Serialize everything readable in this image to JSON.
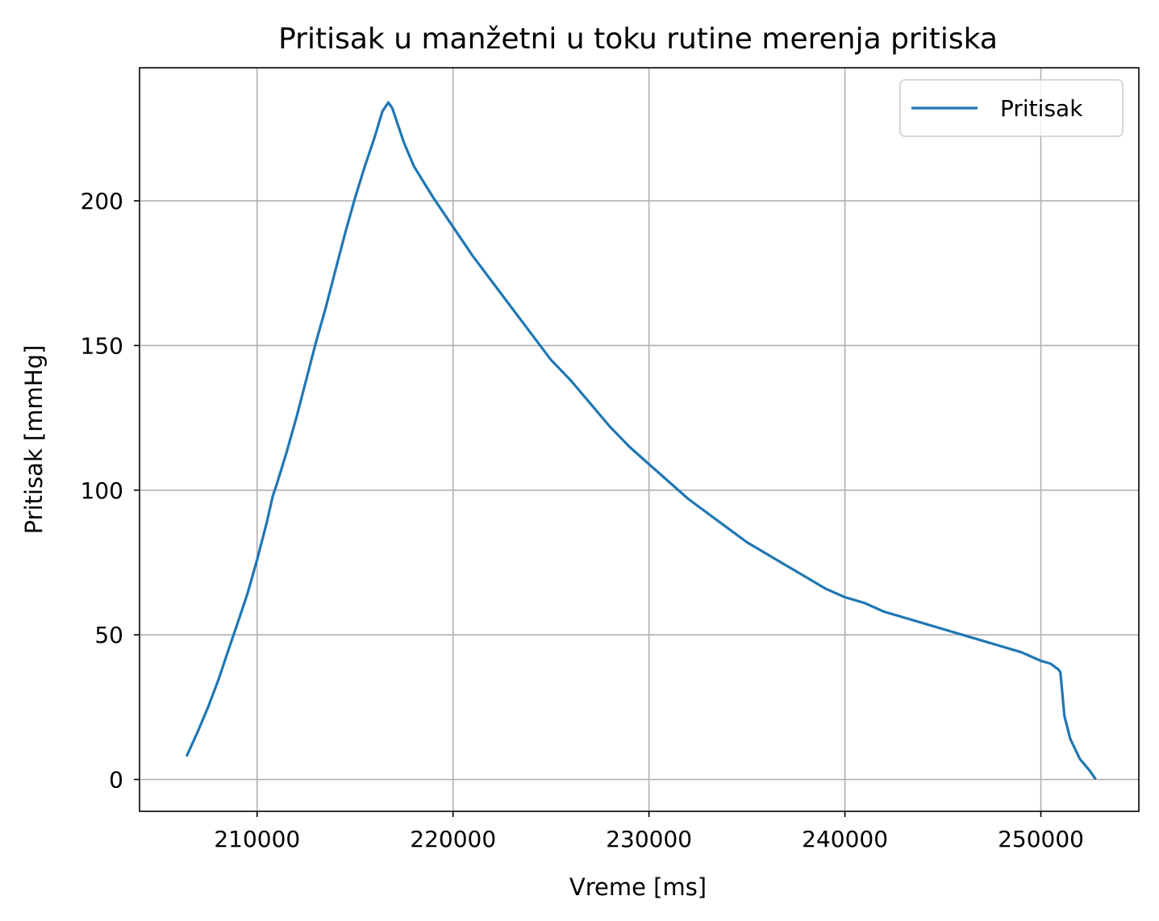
{
  "chart_data": {
    "type": "line",
    "title": "Pritisak u manžetni u toku rutine merenja pritiska",
    "xlabel": "Vreme [ms]",
    "ylabel": "Pritisak [mmHg]",
    "xlim": [
      204000,
      255000
    ],
    "ylim": [
      -11,
      246
    ],
    "xticks": [
      210000,
      220000,
      230000,
      240000,
      250000
    ],
    "yticks": [
      0,
      50,
      100,
      150,
      200
    ],
    "grid": true,
    "legend_position": "top-right",
    "colors": {
      "series": "#1f77b4",
      "grid": "#b0b0b0"
    },
    "series": [
      {
        "name": "Pritisak",
        "x": [
          206400,
          206600,
          207000,
          207500,
          208000,
          208500,
          209000,
          209500,
          210000,
          210500,
          210800,
          211000,
          211500,
          212000,
          212500,
          213000,
          213500,
          214000,
          214500,
          215000,
          215500,
          216000,
          216400,
          216700,
          216900,
          217500,
          218000,
          219000,
          220000,
          221000,
          222000,
          223000,
          224000,
          225000,
          226000,
          227000,
          228000,
          229000,
          230000,
          231000,
          232000,
          233000,
          234000,
          235000,
          236000,
          237000,
          238000,
          239000,
          240000,
          241000,
          242000,
          243000,
          244000,
          245000,
          246000,
          247000,
          248000,
          249000,
          250000,
          250500,
          250900,
          251000,
          251200,
          251500,
          252000,
          252500,
          252800
        ],
        "y": [
          8,
          11,
          17,
          25,
          34,
          44,
          54,
          64,
          76,
          89,
          98,
          102,
          113,
          125,
          138,
          151,
          163,
          176,
          189,
          201,
          212,
          222,
          231,
          234,
          232,
          220,
          212,
          201,
          191,
          181,
          172,
          163,
          154,
          145,
          138,
          130,
          122,
          115,
          109,
          103,
          97,
          92,
          87,
          82,
          78,
          74,
          70,
          66,
          63,
          61,
          58,
          56,
          54,
          52,
          50,
          48,
          46,
          44,
          41,
          40,
          38,
          37,
          22,
          14,
          7,
          3,
          0
        ]
      }
    ]
  }
}
